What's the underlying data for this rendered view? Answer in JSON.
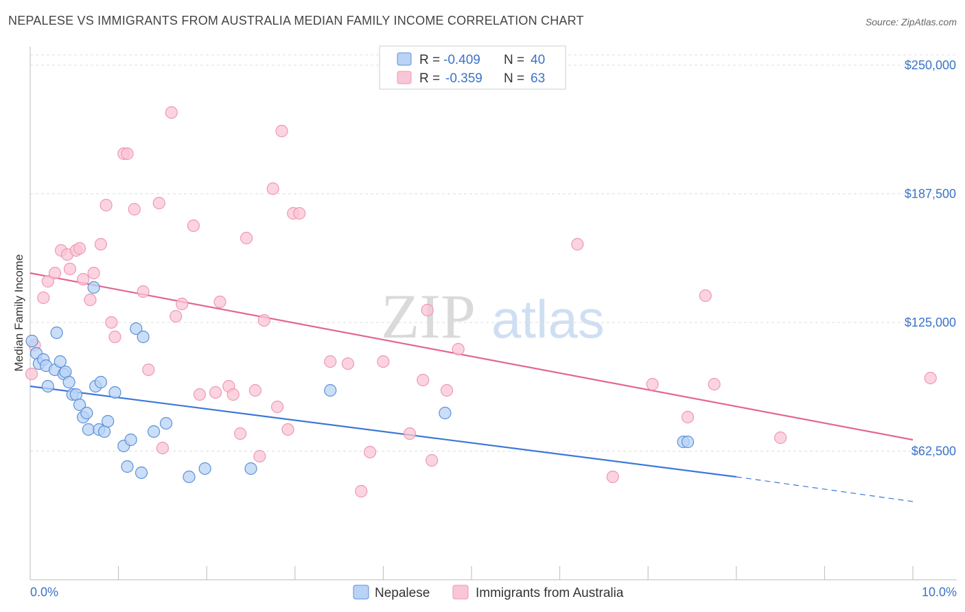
{
  "header": {
    "title": "NEPALESE VS IMMIGRANTS FROM AUSTRALIA MEDIAN FAMILY INCOME CORRELATION CHART",
    "source": "Source: ZipAtlas.com"
  },
  "watermark": {
    "part1": "ZIP",
    "part2": "atlas"
  },
  "colors": {
    "blue": "#3b78d8",
    "blue_fill": "#b8d3f5",
    "blue_stroke": "#5b8fd6",
    "pink": "#e36591",
    "pink_fill": "#f9c6d6",
    "pink_stroke": "#ee97b3",
    "axis_text": "#3a73c8",
    "grid": "#dddddd"
  },
  "legend": {
    "rows": [
      {
        "series": "Nepalese",
        "r_label": "R = ",
        "r_value": "-0.409",
        "n_label": "N = ",
        "n_value": "40"
      },
      {
        "series": "Immigrants from Australia",
        "r_label": "R = ",
        "r_value": "-0.359",
        "n_label": "N = ",
        "n_value": "63"
      }
    ]
  },
  "chart_data": {
    "type": "scatter",
    "title": "NEPALESE VS IMMIGRANTS FROM AUSTRALIA MEDIAN FAMILY INCOME CORRELATION CHART",
    "xlabel": "",
    "ylabel": "Median Family Income",
    "xlim": [
      0,
      10
    ],
    "ylim": [
      0,
      255000
    ],
    "x_tick_labels": [
      "0.0%",
      "10.0%"
    ],
    "y_ticks": [
      62500,
      125000,
      187500,
      250000
    ],
    "y_tick_labels": [
      "$62,500",
      "$125,000",
      "$187,500",
      "$250,000"
    ],
    "grid": true,
    "legend_position": "bottom-center",
    "series": [
      {
        "name": "Nepalese",
        "color": "#3b78d8",
        "points": [
          [
            0.02,
            116000
          ],
          [
            0.07,
            110000
          ],
          [
            0.1,
            105000
          ],
          [
            0.15,
            107000
          ],
          [
            0.18,
            104000
          ],
          [
            0.2,
            94000
          ],
          [
            0.28,
            102000
          ],
          [
            0.3,
            120000
          ],
          [
            0.34,
            106000
          ],
          [
            0.38,
            100000
          ],
          [
            0.4,
            101000
          ],
          [
            0.44,
            96000
          ],
          [
            0.48,
            90000
          ],
          [
            0.52,
            90000
          ],
          [
            0.56,
            85000
          ],
          [
            0.6,
            79000
          ],
          [
            0.64,
            81000
          ],
          [
            0.66,
            73000
          ],
          [
            0.72,
            142000
          ],
          [
            0.74,
            94000
          ],
          [
            0.78,
            73000
          ],
          [
            0.8,
            96000
          ],
          [
            0.84,
            72000
          ],
          [
            0.88,
            77000
          ],
          [
            0.96,
            91000
          ],
          [
            1.06,
            65000
          ],
          [
            1.1,
            55000
          ],
          [
            1.14,
            68000
          ],
          [
            1.2,
            122000
          ],
          [
            1.26,
            52000
          ],
          [
            1.28,
            118000
          ],
          [
            1.4,
            72000
          ],
          [
            1.54,
            76000
          ],
          [
            1.8,
            50000
          ],
          [
            1.98,
            54000
          ],
          [
            2.5,
            54000
          ],
          [
            3.4,
            92000
          ],
          [
            4.7,
            81000
          ],
          [
            7.4,
            67000
          ],
          [
            7.45,
            67000
          ]
        ],
        "trend": {
          "x0": 0,
          "y0": 94000,
          "x1": 8.0,
          "y1": 50000,
          "dashed_to_x": 10,
          "dashed_to_y": 38000
        }
      },
      {
        "name": "Immigrants from Australia",
        "color": "#e36591",
        "points": [
          [
            0.0,
            100000
          ],
          [
            0.05,
            114000
          ],
          [
            0.15,
            137000
          ],
          [
            0.2,
            145000
          ],
          [
            0.28,
            149000
          ],
          [
            0.35,
            160000
          ],
          [
            0.42,
            158000
          ],
          [
            0.45,
            151000
          ],
          [
            0.52,
            160000
          ],
          [
            0.56,
            161000
          ],
          [
            0.6,
            146000
          ],
          [
            0.68,
            136000
          ],
          [
            0.72,
            149000
          ],
          [
            0.8,
            163000
          ],
          [
            0.86,
            182000
          ],
          [
            0.92,
            125000
          ],
          [
            0.96,
            118000
          ],
          [
            1.06,
            207000
          ],
          [
            1.1,
            207000
          ],
          [
            1.18,
            180000
          ],
          [
            1.28,
            140000
          ],
          [
            1.34,
            102000
          ],
          [
            1.46,
            183000
          ],
          [
            1.5,
            64000
          ],
          [
            1.6,
            227000
          ],
          [
            1.65,
            128000
          ],
          [
            1.72,
            134000
          ],
          [
            1.85,
            172000
          ],
          [
            1.92,
            90000
          ],
          [
            2.1,
            91000
          ],
          [
            2.15,
            135000
          ],
          [
            2.25,
            94000
          ],
          [
            2.3,
            90000
          ],
          [
            2.38,
            71000
          ],
          [
            2.45,
            166000
          ],
          [
            2.55,
            92000
          ],
          [
            2.6,
            60000
          ],
          [
            2.65,
            126000
          ],
          [
            2.75,
            190000
          ],
          [
            2.8,
            84000
          ],
          [
            2.85,
            218000
          ],
          [
            2.92,
            73000
          ],
          [
            2.98,
            178000
          ],
          [
            3.05,
            178000
          ],
          [
            3.4,
            106000
          ],
          [
            3.6,
            105000
          ],
          [
            3.75,
            43000
          ],
          [
            3.85,
            62000
          ],
          [
            4.0,
            106000
          ],
          [
            4.3,
            71000
          ],
          [
            4.45,
            97000
          ],
          [
            4.5,
            131000
          ],
          [
            4.55,
            58000
          ],
          [
            4.72,
            92000
          ],
          [
            4.85,
            112000
          ],
          [
            6.2,
            163000
          ],
          [
            6.6,
            50000
          ],
          [
            7.05,
            95000
          ],
          [
            7.45,
            79000
          ],
          [
            7.65,
            138000
          ],
          [
            7.75,
            95000
          ],
          [
            8.5,
            69000
          ],
          [
            10.2,
            98000
          ]
        ],
        "trend": {
          "x0": 0,
          "y0": 149000,
          "x1": 10.0,
          "y1": 68000
        }
      }
    ]
  },
  "bottom_legend": [
    {
      "label": "Nepalese"
    },
    {
      "label": "Immigrants from Australia"
    }
  ]
}
